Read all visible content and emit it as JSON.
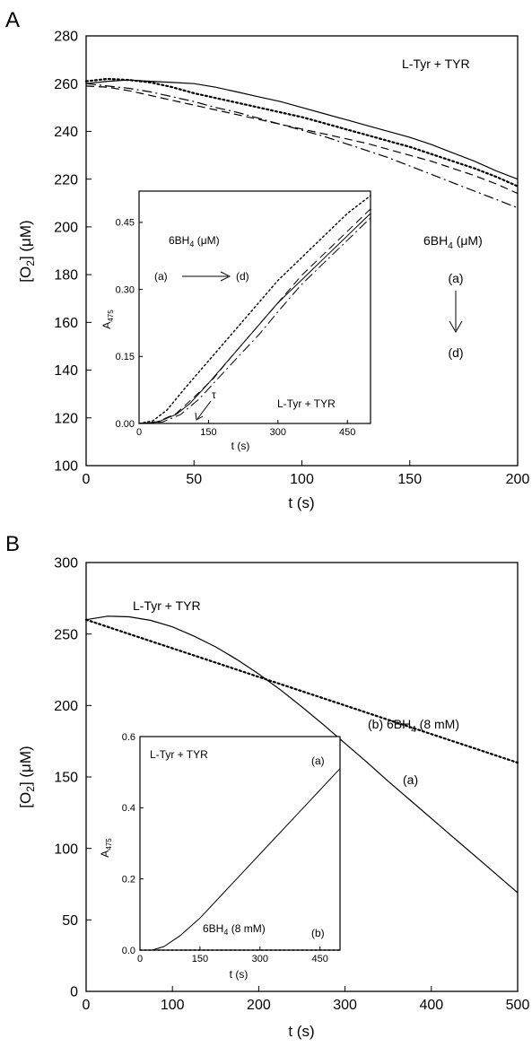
{
  "chart_data": [
    {
      "panel": "A",
      "type": "line",
      "xlabel": "t (s)",
      "ylabel": "[O2] (μM)",
      "xlim": [
        0,
        200
      ],
      "ylim": [
        100,
        280
      ],
      "xticks": [
        0,
        50,
        100,
        150,
        200
      ],
      "yticks": [
        100,
        120,
        140,
        160,
        180,
        200,
        220,
        240,
        260,
        280
      ],
      "grid": false,
      "annotations": {
        "label": "L-Tyr + TYR",
        "legend_title_main": "6BH",
        "legend_title_sub": "4",
        "legend_title_unit": " (μM)",
        "first": "(a)",
        "last": "(d)"
      },
      "series": [
        {
          "key": "a",
          "style": "solid",
          "x": [
            0,
            10,
            20,
            30,
            40,
            50,
            60,
            70,
            80,
            90,
            100,
            110,
            120,
            130,
            140,
            150,
            160,
            170,
            180,
            190,
            200
          ],
          "values": [
            260,
            261,
            261.5,
            261,
            260.5,
            260,
            258.5,
            256.5,
            254.5,
            252.5,
            250,
            247.5,
            245,
            242.5,
            240,
            237.5,
            234.5,
            231,
            227.5,
            223.5,
            220
          ]
        },
        {
          "key": "b",
          "style": "dotted",
          "x": [
            0,
            10,
            20,
            30,
            40,
            50,
            60,
            70,
            80,
            90,
            100,
            110,
            120,
            130,
            140,
            150,
            160,
            170,
            180,
            190,
            200
          ],
          "values": [
            261,
            262,
            261.5,
            260.5,
            258.5,
            256,
            254,
            252,
            250,
            248,
            246,
            243.5,
            241,
            238.5,
            236,
            233.5,
            230.5,
            227.5,
            224.5,
            221,
            217
          ]
        },
        {
          "key": "c",
          "style": "dashed",
          "x": [
            0,
            10,
            20,
            30,
            40,
            50,
            60,
            70,
            80,
            90,
            100,
            110,
            120,
            130,
            140,
            150,
            160,
            170,
            180,
            190,
            200
          ],
          "values": [
            259,
            258.5,
            257,
            255,
            253,
            251,
            249,
            247,
            245,
            243,
            241,
            239,
            237,
            235,
            232.5,
            230,
            227.5,
            224.5,
            221.5,
            218,
            214
          ]
        },
        {
          "key": "d",
          "style": "dashdot",
          "x": [
            0,
            10,
            20,
            30,
            40,
            50,
            60,
            70,
            80,
            90,
            100,
            110,
            120,
            130,
            140,
            150,
            160,
            170,
            180,
            190,
            200
          ],
          "values": [
            260,
            259,
            258,
            256.5,
            254.5,
            252.5,
            250,
            248,
            245.5,
            243,
            240.5,
            238,
            235,
            232,
            229,
            225.5,
            222,
            218.5,
            215,
            211.5,
            208
          ]
        }
      ],
      "inset": {
        "xlabel": "t (s)",
        "ylabel_main": "A",
        "ylabel_sub": "475",
        "xlim": [
          0,
          500
        ],
        "ylim": [
          0,
          0.52
        ],
        "xticks": [
          0,
          150,
          300,
          450
        ],
        "yticks": [
          0.0,
          0.15,
          0.3,
          0.45
        ],
        "ytick_labels": [
          "0.00",
          "0.15",
          "0.30",
          "0.45"
        ],
        "annotations": {
          "legend_main": "6BH",
          "legend_sub": "4",
          "legend_unit": " (μM)",
          "from": "(a)",
          "to": "(d)",
          "label": "L-Tyr + TYR",
          "tau": "τ"
        },
        "series": [
          {
            "key": "a",
            "style": "solid",
            "x": [
              0,
              40,
              80,
              110,
              150,
              200,
              250,
              300,
              350,
              400,
              450,
              500
            ],
            "values": [
              0,
              0.003,
              0.02,
              0.045,
              0.09,
              0.15,
              0.21,
              0.27,
              0.32,
              0.37,
              0.42,
              0.47
            ]
          },
          {
            "key": "b",
            "style": "dotted",
            "x": [
              0,
              30,
              60,
              100,
              150,
              200,
              250,
              300,
              350,
              400,
              450,
              500
            ],
            "values": [
              0,
              0.006,
              0.03,
              0.08,
              0.14,
              0.2,
              0.26,
              0.32,
              0.37,
              0.42,
              0.47,
              0.51
            ]
          },
          {
            "key": "c",
            "style": "dashed",
            "x": [
              0,
              40,
              80,
              120,
              160,
              200,
              250,
              300,
              350,
              400,
              450,
              500
            ],
            "values": [
              0,
              0.004,
              0.022,
              0.06,
              0.1,
              0.15,
              0.21,
              0.27,
              0.33,
              0.38,
              0.43,
              0.48
            ]
          },
          {
            "key": "d",
            "style": "dashdot",
            "x": [
              0,
              50,
              90,
              130,
              170,
              210,
              260,
              300,
              350,
              400,
              450,
              500
            ],
            "values": [
              0,
              0.003,
              0.02,
              0.055,
              0.1,
              0.145,
              0.2,
              0.25,
              0.31,
              0.36,
              0.41,
              0.46
            ]
          }
        ]
      }
    },
    {
      "panel": "B",
      "type": "line",
      "xlabel": "t (s)",
      "ylabel": "[O2] (μM)",
      "xlim": [
        0,
        500
      ],
      "ylim": [
        0,
        300
      ],
      "xticks": [
        0,
        100,
        200,
        300,
        400,
        500
      ],
      "yticks": [
        0,
        50,
        100,
        150,
        200,
        250,
        300
      ],
      "grid": false,
      "annotations": {
        "label": "L-Tyr + TYR",
        "b_prefix": "(b)  6BH",
        "b_sub": "4",
        "b_suffix": " (8 mM)",
        "a": "(a)"
      },
      "series": [
        {
          "key": "a",
          "style": "solid",
          "x": [
            0,
            25,
            50,
            75,
            100,
            125,
            150,
            175,
            200,
            225,
            250,
            275,
            300,
            325,
            350,
            375,
            400,
            425,
            450,
            475,
            500
          ],
          "values": [
            260,
            262.5,
            262,
            259.5,
            255,
            248.5,
            241,
            232,
            222,
            211,
            199,
            186.5,
            173.5,
            160.5,
            147,
            134,
            121,
            108,
            95,
            82,
            69
          ]
        },
        {
          "key": "b",
          "style": "dotted",
          "x": [
            0,
            50,
            100,
            150,
            200,
            250,
            300,
            350,
            400,
            450,
            500
          ],
          "values": [
            260,
            250,
            240,
            230,
            220,
            210,
            200,
            190,
            180,
            170,
            160
          ]
        }
      ],
      "inset": {
        "xlabel": "t (s)",
        "ylabel_main": "A",
        "ylabel_sub": "475",
        "xlim": [
          0,
          500
        ],
        "ylim": [
          0,
          0.6
        ],
        "xticks": [
          0,
          150,
          300,
          450
        ],
        "yticks": [
          0.0,
          0.2,
          0.4,
          0.6
        ],
        "ytick_labels": [
          "0.0",
          "0.2",
          "0.4",
          "0.6"
        ],
        "annotations": {
          "label": "L-Tyr + TYR",
          "a": "(a)",
          "b": "(b)",
          "b_main": "6BH",
          "b_sub": "4",
          "b_unit": " (8 mM)"
        },
        "series": [
          {
            "key": "a",
            "style": "solid",
            "x": [
              0,
              30,
              60,
              100,
              150,
              200,
              250,
              300,
              350,
              400,
              450,
              500
            ],
            "values": [
              0,
              0,
              0.01,
              0.04,
              0.09,
              0.15,
              0.21,
              0.27,
              0.33,
              0.39,
              0.45,
              0.51
            ]
          },
          {
            "key": "b",
            "style": "dotted",
            "x": [
              0,
              500
            ],
            "values": [
              0,
              0
            ]
          }
        ]
      }
    }
  ]
}
